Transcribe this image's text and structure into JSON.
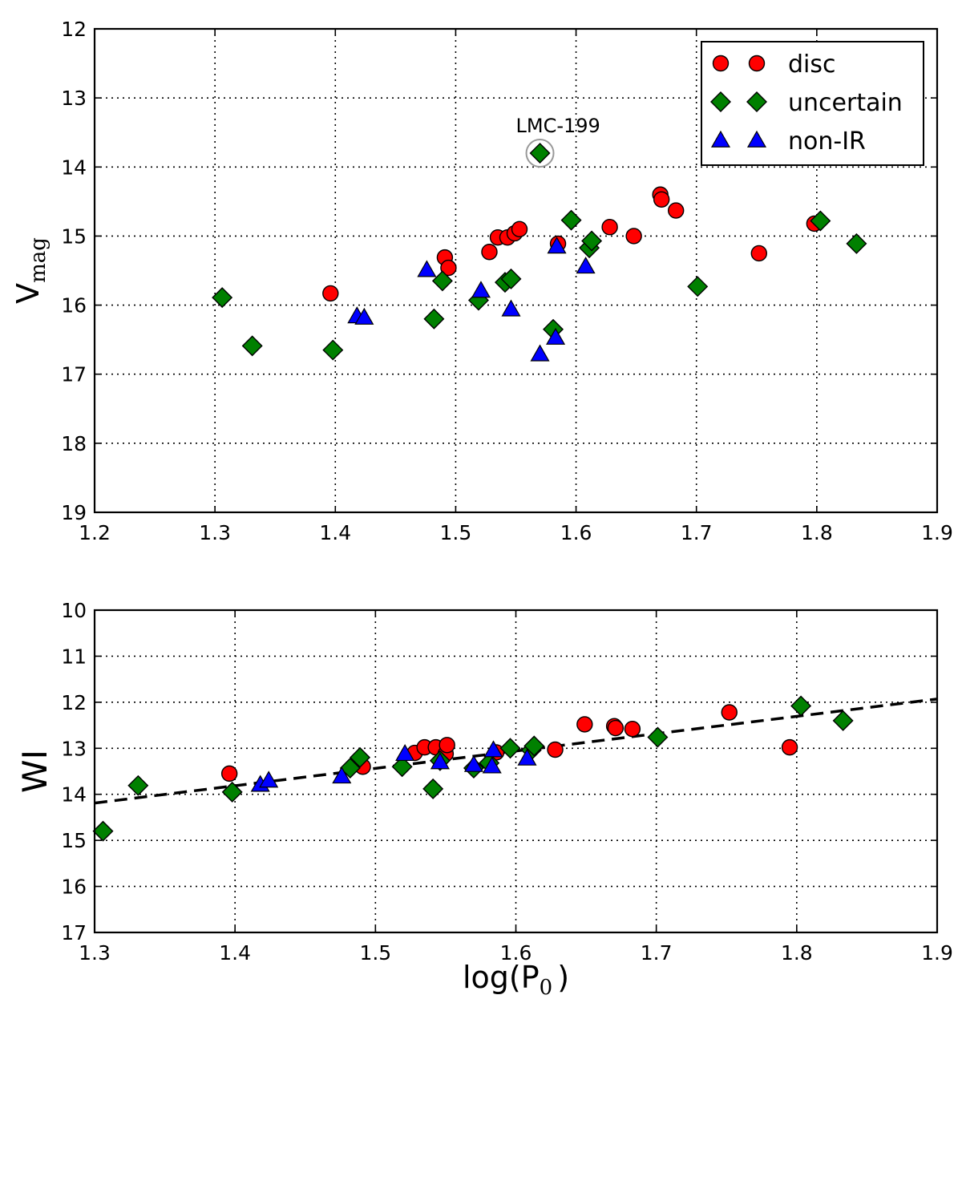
{
  "chart_data": [
    {
      "type": "scatter",
      "id": "top",
      "title": "",
      "xlabel": "",
      "ylabel_main": "V",
      "ylabel_sub": "mag",
      "xlim": [
        1.2,
        1.9
      ],
      "ylim": [
        12,
        19
      ],
      "y_inverted": true,
      "grid": true,
      "xticks": [
        "1.2",
        "1.3",
        "1.4",
        "1.5",
        "1.6",
        "1.7",
        "1.8",
        "1.9"
      ],
      "yticks": [
        "12",
        "13",
        "14",
        "15",
        "16",
        "17",
        "18",
        "19"
      ],
      "legend": {
        "placement": "top-right",
        "entries": [
          {
            "label": "disc",
            "marker": "circle",
            "color": "#ff0000"
          },
          {
            "label": "uncertain",
            "marker": "diamond",
            "color": "#008000"
          },
          {
            "label": "non-IR",
            "marker": "triangle",
            "color": "#0000ff"
          }
        ]
      },
      "annotation": {
        "text": "LMC-199",
        "x": 1.57,
        "y": 13.8
      },
      "series": [
        {
          "name": "disc",
          "marker": "circle",
          "color": "#ff0000",
          "points": [
            [
              1.396,
              15.83
            ],
            [
              1.491,
              15.31
            ],
            [
              1.494,
              15.46
            ],
            [
              1.528,
              15.23
            ],
            [
              1.535,
              15.02
            ],
            [
              1.543,
              15.02
            ],
            [
              1.549,
              14.96
            ],
            [
              1.553,
              14.9
            ],
            [
              1.585,
              15.11
            ],
            [
              1.628,
              14.87
            ],
            [
              1.648,
              15.0
            ],
            [
              1.67,
              14.4
            ],
            [
              1.671,
              14.47
            ],
            [
              1.683,
              14.63
            ],
            [
              1.752,
              15.25
            ],
            [
              1.798,
              14.82
            ]
          ]
        },
        {
          "name": "uncertain",
          "marker": "diamond",
          "color": "#008000",
          "points": [
            [
              1.306,
              15.89
            ],
            [
              1.331,
              16.59
            ],
            [
              1.398,
              16.65
            ],
            [
              1.482,
              16.2
            ],
            [
              1.489,
              15.65
            ],
            [
              1.519,
              15.93
            ],
            [
              1.541,
              15.67
            ],
            [
              1.546,
              15.62
            ],
            [
              1.57,
              13.8
            ],
            [
              1.581,
              16.35
            ],
            [
              1.596,
              14.77
            ],
            [
              1.611,
              15.17
            ],
            [
              1.613,
              15.07
            ],
            [
              1.701,
              15.73
            ],
            [
              1.803,
              14.78
            ],
            [
              1.833,
              15.11
            ]
          ]
        },
        {
          "name": "non-IR",
          "marker": "triangle",
          "color": "#0000ff",
          "points": [
            [
              1.418,
              16.16
            ],
            [
              1.424,
              16.18
            ],
            [
              1.476,
              15.49
            ],
            [
              1.521,
              15.79
            ],
            [
              1.546,
              16.06
            ],
            [
              1.57,
              16.71
            ],
            [
              1.583,
              16.47
            ],
            [
              1.584,
              15.15
            ],
            [
              1.608,
              15.44
            ]
          ]
        }
      ]
    },
    {
      "type": "scatter",
      "id": "bottom",
      "title": "",
      "xlabel_main": "log(P",
      "xlabel_sub": "0",
      "xlabel_close": ")",
      "ylabel": "WI",
      "xlim": [
        1.3,
        1.9
      ],
      "ylim": [
        10,
        17
      ],
      "y_inverted": true,
      "grid": true,
      "xticks": [
        "1.3",
        "1.4",
        "1.5",
        "1.6",
        "1.7",
        "1.8",
        "1.9"
      ],
      "yticks": [
        "10",
        "11",
        "12",
        "13",
        "14",
        "15",
        "16",
        "17"
      ],
      "fit_line": {
        "style": "dashed",
        "color": "#000000",
        "x": [
          1.3,
          1.9
        ],
        "y": [
          14.19,
          11.93
        ]
      },
      "series": [
        {
          "name": "disc",
          "marker": "circle",
          "color": "#ff0000",
          "points": [
            [
              1.396,
              13.55
            ],
            [
              1.491,
              13.4
            ],
            [
              1.528,
              13.1
            ],
            [
              1.535,
              12.98
            ],
            [
              1.543,
              12.98
            ],
            [
              1.55,
              13.12
            ],
            [
              1.551,
              12.93
            ],
            [
              1.586,
              13.09
            ],
            [
              1.628,
              13.03
            ],
            [
              1.649,
              12.48
            ],
            [
              1.67,
              12.52
            ],
            [
              1.671,
              12.56
            ],
            [
              1.683,
              12.58
            ],
            [
              1.752,
              12.22
            ],
            [
              1.795,
              12.98
            ]
          ]
        },
        {
          "name": "uncertain",
          "marker": "diamond",
          "color": "#008000",
          "points": [
            [
              1.306,
              14.8
            ],
            [
              1.331,
              13.81
            ],
            [
              1.398,
              13.95
            ],
            [
              1.482,
              13.43
            ],
            [
              1.489,
              13.2
            ],
            [
              1.519,
              13.4
            ],
            [
              1.541,
              13.88
            ],
            [
              1.546,
              13.27
            ],
            [
              1.57,
              13.43
            ],
            [
              1.581,
              13.32
            ],
            [
              1.596,
              13.0
            ],
            [
              1.611,
              13.04
            ],
            [
              1.613,
              12.95
            ],
            [
              1.701,
              12.76
            ],
            [
              1.803,
              12.08
            ],
            [
              1.833,
              12.4
            ]
          ]
        },
        {
          "name": "non-IR",
          "marker": "triangle",
          "color": "#0000ff",
          "points": [
            [
              1.418,
              13.79
            ],
            [
              1.424,
              13.7
            ],
            [
              1.476,
              13.61
            ],
            [
              1.521,
              13.12
            ],
            [
              1.546,
              13.3
            ],
            [
              1.57,
              13.36
            ],
            [
              1.583,
              13.39
            ],
            [
              1.584,
              13.04
            ],
            [
              1.608,
              13.22
            ]
          ]
        }
      ]
    }
  ]
}
